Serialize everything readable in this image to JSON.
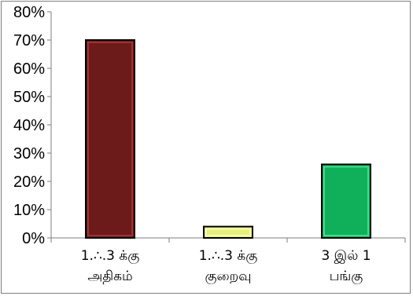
{
  "chart_data": {
    "type": "bar",
    "categories": [
      [
        "1.∴.3  க்கு",
        "அதிகம்"
      ],
      [
        "1.∴.3  க்கு",
        "குறைவு"
      ],
      [
        "3  இல்  1",
        "பங்கு"
      ]
    ],
    "values": [
      70,
      4,
      26
    ],
    "colors": [
      "#6d1a1a",
      "#e6f07a",
      "#10b05a"
    ],
    "highlight_colors": [
      "#a33030",
      "#f4fbb0",
      "#38e08a"
    ],
    "yticks": [
      "0%",
      "10%",
      "20%",
      "30%",
      "40%",
      "50%",
      "60%",
      "70%",
      "80%"
    ],
    "ylim": [
      0,
      80
    ],
    "title": "",
    "xlabel": "",
    "ylabel": "",
    "grid": false,
    "legend": "none"
  }
}
